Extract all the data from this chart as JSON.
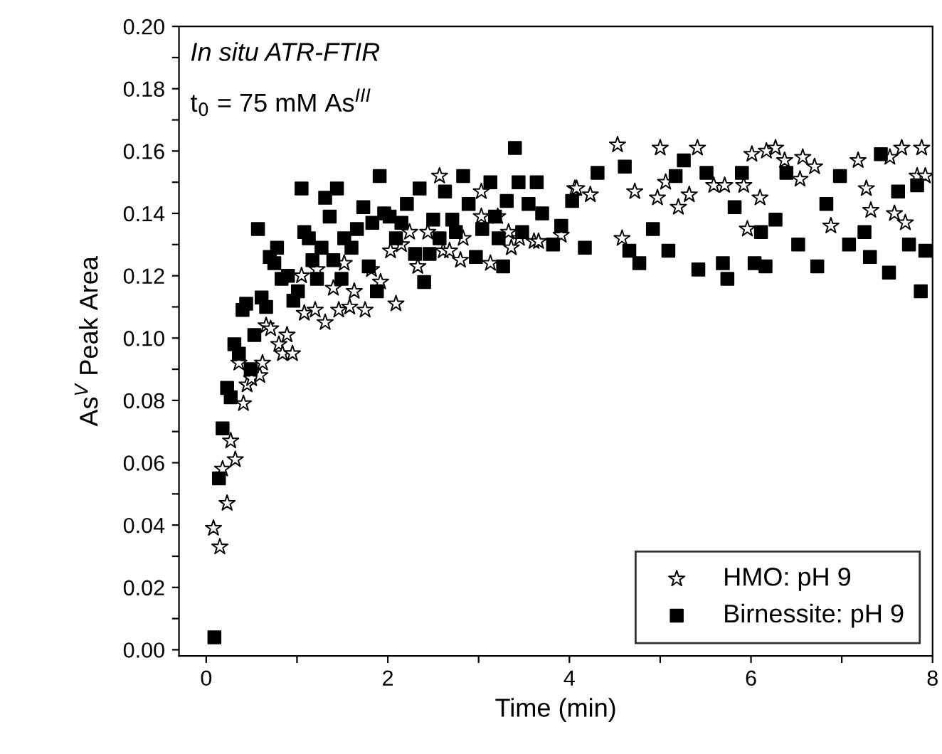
{
  "chart_data": {
    "type": "scatter",
    "xlabel": "Time (min)",
    "ylabel": "As$^{V}$ Peak Area",
    "annotations": [
      "In situ ATR-FTIR",
      "t$_{0}$ = 75 mM As$^{III}$"
    ],
    "xlim": [
      -0.3,
      8
    ],
    "ylim": [
      -0.002,
      0.2
    ],
    "xticks": [
      0,
      {
        "value": 1,
        "label": null
      },
      2,
      {
        "value": 3,
        "label": null
      },
      4,
      {
        "value": 5,
        "label": null
      },
      6,
      {
        "value": 7,
        "label": null
      },
      8
    ],
    "yticks": [
      {
        "value": 0,
        "label": "0.00"
      },
      {
        "value": 0.01,
        "label": null
      },
      {
        "value": 0.02,
        "label": "0.02"
      },
      {
        "value": 0.03,
        "label": null
      },
      {
        "value": 0.04,
        "label": "0.04"
      },
      {
        "value": 0.05,
        "label": null
      },
      {
        "value": 0.06,
        "label": "0.06"
      },
      {
        "value": 0.07,
        "label": null
      },
      {
        "value": 0.08,
        "label": "0.08"
      },
      {
        "value": 0.09,
        "label": null
      },
      {
        "value": 0.1,
        "label": "0.10"
      },
      {
        "value": 0.11,
        "label": null
      },
      {
        "value": 0.12,
        "label": "0.12"
      },
      {
        "value": 0.13,
        "label": null
      },
      {
        "value": 0.14,
        "label": "0.14"
      },
      {
        "value": 0.15,
        "label": null
      },
      {
        "value": 0.16,
        "label": "0.16"
      },
      {
        "value": 0.17,
        "label": null
      },
      {
        "value": 0.18,
        "label": "0.18"
      },
      {
        "value": 0.19,
        "label": null
      },
      {
        "value": 0.2,
        "label": "0.20"
      }
    ],
    "grid": false,
    "legend": "bottom right",
    "series": [
      {
        "name": "HMO: pH 9",
        "color": "#ffffff",
        "marker": "star",
        "x": [
          0.08,
          0.15,
          0.18,
          0.23,
          0.27,
          0.32,
          0.36,
          0.41,
          0.45,
          0.5,
          0.59,
          0.62,
          0.66,
          0.71,
          0.8,
          0.84,
          0.89,
          0.95,
          1.05,
          1.08,
          1.2,
          1.31,
          1.22,
          1.4,
          1.46,
          1.52,
          1.58,
          1.63,
          1.75,
          1.82,
          1.92,
          2.09,
          2.03,
          2.15,
          2.24,
          2.33,
          2.44,
          2.57,
          2.61,
          2.68,
          2.8,
          2.83,
          3.03,
          3.03,
          3.13,
          3.21,
          3.33,
          3.36,
          3.45,
          3.61,
          3.66,
          3.91,
          4.06,
          4.08,
          4.23,
          4.53,
          4.58,
          4.72,
          4.97,
          5.0,
          5.06,
          5.2,
          5.32,
          5.41,
          5.59,
          5.71,
          5.92,
          5.96,
          6.01,
          6.1,
          6.17,
          6.27,
          6.37,
          6.54,
          6.57,
          6.7,
          6.88,
          7.18,
          7.27,
          7.32,
          7.53,
          7.58,
          7.66,
          7.7,
          7.83,
          7.88,
          7.92
        ],
        "values": [
          0.039,
          0.033,
          0.058,
          0.047,
          0.067,
          0.061,
          0.092,
          0.079,
          0.085,
          0.087,
          0.088,
          0.092,
          0.104,
          0.103,
          0.098,
          0.095,
          0.101,
          0.095,
          0.12,
          0.108,
          0.109,
          0.105,
          0.122,
          0.116,
          0.109,
          0.124,
          0.11,
          0.115,
          0.109,
          0.122,
          0.118,
          0.111,
          0.128,
          0.13,
          0.134,
          0.123,
          0.134,
          0.152,
          0.128,
          0.128,
          0.125,
          0.132,
          0.147,
          0.139,
          0.124,
          0.139,
          0.134,
          0.129,
          0.132,
          0.131,
          0.131,
          0.133,
          0.148,
          0.148,
          0.146,
          0.162,
          0.132,
          0.147,
          0.145,
          0.161,
          0.15,
          0.142,
          0.146,
          0.161,
          0.149,
          0.149,
          0.149,
          0.135,
          0.159,
          0.145,
          0.16,
          0.161,
          0.157,
          0.151,
          0.158,
          0.155,
          0.136,
          0.157,
          0.148,
          0.141,
          0.158,
          0.14,
          0.161,
          0.137,
          0.152,
          0.161,
          0.152
        ]
      },
      {
        "name": "Birnessite: pH 9",
        "color": "#000000",
        "marker": "square",
        "x": [
          0.09,
          0.14,
          0.18,
          0.23,
          0.27,
          0.31,
          0.36,
          0.4,
          0.44,
          0.49,
          0.53,
          0.57,
          0.61,
          0.66,
          0.7,
          0.75,
          0.78,
          0.83,
          0.9,
          0.96,
          1.01,
          1.05,
          1.08,
          1.13,
          1.17,
          1.22,
          1.27,
          1.31,
          1.36,
          1.4,
          1.44,
          1.49,
          1.52,
          1.6,
          1.66,
          1.73,
          1.79,
          1.83,
          1.88,
          1.91,
          1.96,
          2.02,
          2.09,
          2.15,
          2.21,
          2.3,
          2.35,
          2.4,
          2.46,
          2.5,
          2.57,
          2.63,
          2.71,
          2.75,
          2.83,
          2.89,
          2.97,
          3.04,
          3.13,
          3.18,
          3.22,
          3.27,
          3.31,
          3.4,
          3.44,
          3.48,
          3.55,
          3.64,
          3.7,
          3.82,
          3.91,
          4.03,
          4.17,
          4.31,
          4.61,
          4.66,
          4.77,
          4.92,
          5.09,
          5.17,
          5.26,
          5.42,
          5.51,
          5.69,
          5.74,
          5.82,
          5.9,
          6.04,
          6.11,
          6.16,
          6.27,
          6.39,
          6.52,
          6.73,
          6.83,
          6.98,
          7.08,
          7.25,
          7.31,
          7.43,
          7.52,
          7.62,
          7.74,
          7.83,
          7.87,
          7.92
        ],
        "values": [
          0.004,
          0.055,
          0.071,
          0.084,
          0.081,
          0.098,
          0.095,
          0.109,
          0.111,
          0.09,
          0.101,
          0.135,
          0.113,
          0.11,
          0.126,
          0.124,
          0.129,
          0.119,
          0.12,
          0.112,
          0.115,
          0.148,
          0.134,
          0.132,
          0.125,
          0.119,
          0.129,
          0.145,
          0.139,
          0.125,
          0.148,
          0.119,
          0.132,
          0.129,
          0.135,
          0.142,
          0.123,
          0.137,
          0.115,
          0.152,
          0.14,
          0.139,
          0.132,
          0.137,
          0.143,
          0.127,
          0.148,
          0.118,
          0.127,
          0.138,
          0.132,
          0.147,
          0.138,
          0.134,
          0.152,
          0.143,
          0.126,
          0.135,
          0.15,
          0.139,
          0.132,
          0.123,
          0.144,
          0.161,
          0.15,
          0.134,
          0.143,
          0.15,
          0.14,
          0.13,
          0.136,
          0.144,
          0.129,
          0.153,
          0.155,
          0.128,
          0.124,
          0.135,
          0.128,
          0.152,
          0.157,
          0.122,
          0.153,
          0.124,
          0.119,
          0.142,
          0.153,
          0.124,
          0.134,
          0.123,
          0.138,
          0.153,
          0.13,
          0.123,
          0.143,
          0.152,
          0.13,
          0.134,
          0.126,
          0.159,
          0.121,
          0.147,
          0.13,
          0.149,
          0.115,
          0.128
        ]
      }
    ]
  }
}
